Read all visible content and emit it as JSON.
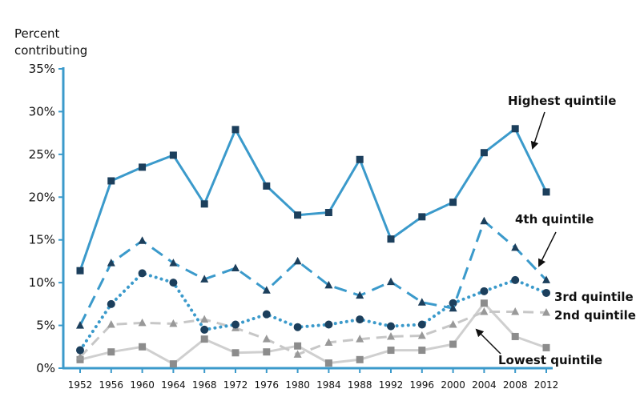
{
  "chart_data": {
    "type": "line",
    "title": "",
    "ylabel": "Percent contributing",
    "ylabel_lines": [
      "Percent",
      "contributing"
    ],
    "xlabel": "",
    "x": [
      "1952",
      "1956",
      "1960",
      "1964",
      "1968",
      "1972",
      "1976",
      "1980",
      "1984",
      "1988",
      "1992",
      "1996",
      "2000",
      "2004",
      "2008",
      "2012"
    ],
    "ylim": [
      0,
      35
    ],
    "yticks": [
      0,
      5,
      10,
      15,
      20,
      25,
      30,
      35
    ],
    "ytick_labels": [
      "0%",
      "5%",
      "10%",
      "15%",
      "20%",
      "25%",
      "30%",
      "35%"
    ],
    "grid": false,
    "series": [
      {
        "name": "Highest quintile",
        "color": "#3b9acb",
        "marker_color": "#1c3f5c",
        "marker": "square",
        "dash": "solid",
        "values": [
          11.4,
          21.9,
          23.5,
          24.9,
          19.2,
          27.9,
          21.3,
          17.9,
          18.2,
          24.4,
          15.1,
          17.7,
          19.4,
          25.2,
          28.0,
          20.6
        ]
      },
      {
        "name": "4th quintile",
        "color": "#3b9acb",
        "marker_color": "#1c3f5c",
        "marker": "triangle",
        "dash": "long-dash",
        "values": [
          5.0,
          12.3,
          14.9,
          12.3,
          10.4,
          11.7,
          9.1,
          12.5,
          9.7,
          8.5,
          10.1,
          7.7,
          7.0,
          17.2,
          14.1,
          10.3
        ]
      },
      {
        "name": "3rd quintile",
        "color": "#3b9acb",
        "marker_color": "#1c3f5c",
        "marker": "circle",
        "dash": "dotted",
        "values": [
          2.1,
          7.5,
          11.1,
          10.0,
          4.5,
          5.1,
          6.3,
          4.8,
          5.1,
          5.7,
          4.9,
          5.1,
          7.6,
          9.0,
          10.3,
          8.8
        ]
      },
      {
        "name": "2nd quintile",
        "color": "#c7c7c7",
        "marker_color": "#999999",
        "marker": "triangle",
        "dash": "dash",
        "values": [
          1.3,
          5.1,
          5.3,
          5.2,
          5.7,
          4.7,
          3.4,
          1.6,
          3.0,
          3.4,
          3.7,
          3.8,
          5.1,
          6.6,
          6.6,
          6.5
        ]
      },
      {
        "name": "Lowest quintile",
        "color": "#cfcfcf",
        "marker_color": "#8c8c8c",
        "marker": "square",
        "dash": "solid",
        "values": [
          1.0,
          1.9,
          2.5,
          0.5,
          3.4,
          1.8,
          1.9,
          2.6,
          0.6,
          1.0,
          2.1,
          2.1,
          2.8,
          7.6,
          3.7,
          2.4
        ]
      }
    ],
    "annotations": [
      {
        "text": "Highest quintile",
        "series": 0,
        "arrow": true
      },
      {
        "text": "4th quintile",
        "series": 1,
        "arrow": true
      },
      {
        "text": "3rd quintile",
        "series": 2,
        "arrow": false
      },
      {
        "text": "2nd quintile",
        "series": 3,
        "arrow": false
      },
      {
        "text": "Lowest quintile",
        "series": 4,
        "arrow": true
      }
    ]
  }
}
